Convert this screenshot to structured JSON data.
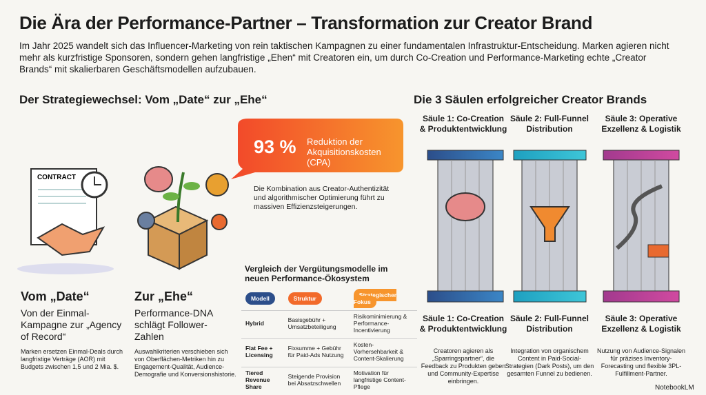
{
  "header": {
    "title": "Die Ära der Performance-Partner – Transformation zur Creator Brand",
    "intro": "Im Jahr 2025 wandelt sich das Influencer-Marketing von rein taktischen Kampagnen zu einer fundamentalen Infrastruktur-Entscheidung. Marken agieren nicht mehr als kurzfristige Sponsoren, sondern gehen langfristige „Ehen“ mit Creatoren ein, um durch Co-Creation und Performance-Marketing echte „Creator Brands“ mit skalierbaren Geschäftsmodellen aufzubauen."
  },
  "left": {
    "heading": "Der Strategiewechsel: Vom „Date“ zur „Ehe“",
    "contract_label": "CONTRACT",
    "date": {
      "title": "Vom „Date“",
      "subtitle": "Von der Einmal-Kampagne zur „Agency of Record“",
      "text": "Marken ersetzen Einmal-Deals durch langfristige Verträge (AOR) mit Budgets zwischen 1,5 und 2 Mia. $."
    },
    "ehe": {
      "title": "Zur „Ehe“",
      "subtitle": "Performance-DNA schlägt Follower-Zahlen",
      "text": "Auswahlkriterien verschieben sich von Oberflächen-Metriken hin zu Engagement-Qualität, Audience-Demografie und Konversionshistorie."
    }
  },
  "stat": {
    "value": "93 %",
    "label": "Reduktion der Akquisitionskosten (CPA)",
    "text": "Die Kombination aus Creator-Authentizität und algorithmischer Optimierung führt zu massiven Effizienzsteigerungen."
  },
  "table": {
    "title": "Vergleich der Vergütungsmodelle im neuen Performance-Ökosystem",
    "header": [
      "Modell",
      "Struktur",
      "Strategischer Fokus"
    ],
    "rows": [
      [
        "Hybrid",
        "Basisgebühr + Umsatzbeteiligung",
        "Risikominimierung & Performance-Incentivierung"
      ],
      [
        "Flat Fee + Licensing",
        "Fixsumme + Gebühr für Paid-Ads Nutzung",
        "Kosten-Vorhersehbarkeit & Content-Skalierung"
      ],
      [
        "Tiered Revenue Share",
        "Steigende Provision bei Absatzschwellen",
        "Motivation für langfristige Content-Pflege"
      ]
    ]
  },
  "right": {
    "heading": "Die 3 Säulen erfolgreicher Creator Brands",
    "pillars": [
      {
        "label_top": "Säule 1: Co-Creation & Produktentwicklung",
        "label": "Säule 1: Co-Creation & Produktentwicklung",
        "text": "Creatoren agieren als „Sparringspartner“, die Feedback zu Produkten geben und Community-Expertise einbringen."
      },
      {
        "label_top": "Säule 2: Full-Funnel Distribution",
        "label": "Säule 2: Full-Funnel Distribution",
        "text": "Integration von organischem Content in Paid-Social-Strategien (Dark Posts), um den gesamten Funnel zu bedienen."
      },
      {
        "label_top": "Säule 3: Operative Exzellenz & Logistik",
        "label": "Säule 3: Operative Exzellenz & Logistik",
        "text": "Nutzung von Audience-Signalen für präzises Inventory-Forecasting und flexible 3PL-Fulfillment-Partner."
      }
    ]
  },
  "footer": {
    "brand": "NotebookLM"
  }
}
